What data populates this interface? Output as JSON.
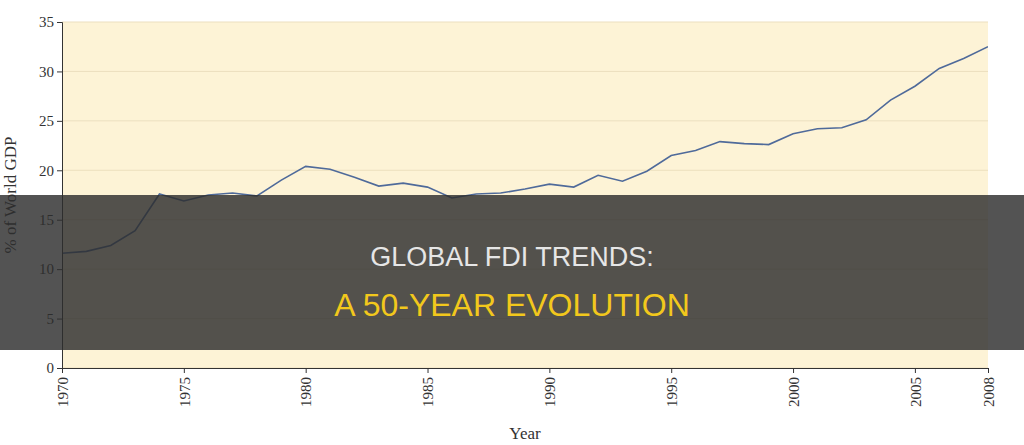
{
  "chart_data": {
    "type": "line",
    "title": "GLOBAL FDI TRENDS:",
    "subtitle": "A 50-YEAR EVOLUTION",
    "x_label": "Year",
    "y_label": "% of World GDP",
    "x": [
      1970,
      1971,
      1972,
      1973,
      1974,
      1975,
      1976,
      1977,
      1978,
      1979,
      1980,
      1981,
      1982,
      1983,
      1984,
      1985,
      1986,
      1987,
      1988,
      1989,
      1990,
      1991,
      1992,
      1993,
      1994,
      1995,
      1996,
      1997,
      1998,
      1999,
      2000,
      2001,
      2002,
      2003,
      2004,
      2005,
      2006,
      2007,
      2008
    ],
    "values": [
      11.6,
      11.8,
      12.4,
      13.9,
      17.6,
      16.9,
      17.5,
      17.7,
      17.4,
      19.0,
      20.4,
      20.1,
      19.3,
      18.4,
      18.7,
      18.3,
      17.2,
      17.6,
      17.7,
      18.1,
      18.6,
      18.3,
      19.5,
      18.9,
      19.9,
      21.5,
      22.0,
      22.9,
      22.7,
      22.6,
      23.7,
      24.2,
      24.3,
      25.1,
      27.1,
      28.5,
      30.3,
      31.3,
      32.5
    ],
    "color": "#4f6a9a",
    "xlim": [
      1970,
      2008
    ],
    "ylim": [
      0,
      35
    ],
    "xticks": [
      1970,
      1975,
      1980,
      1985,
      1990,
      1995,
      2000,
      2005,
      2008
    ],
    "yticks": [
      0,
      5,
      10,
      15,
      20,
      25,
      30,
      35
    ],
    "grid": true
  }
}
